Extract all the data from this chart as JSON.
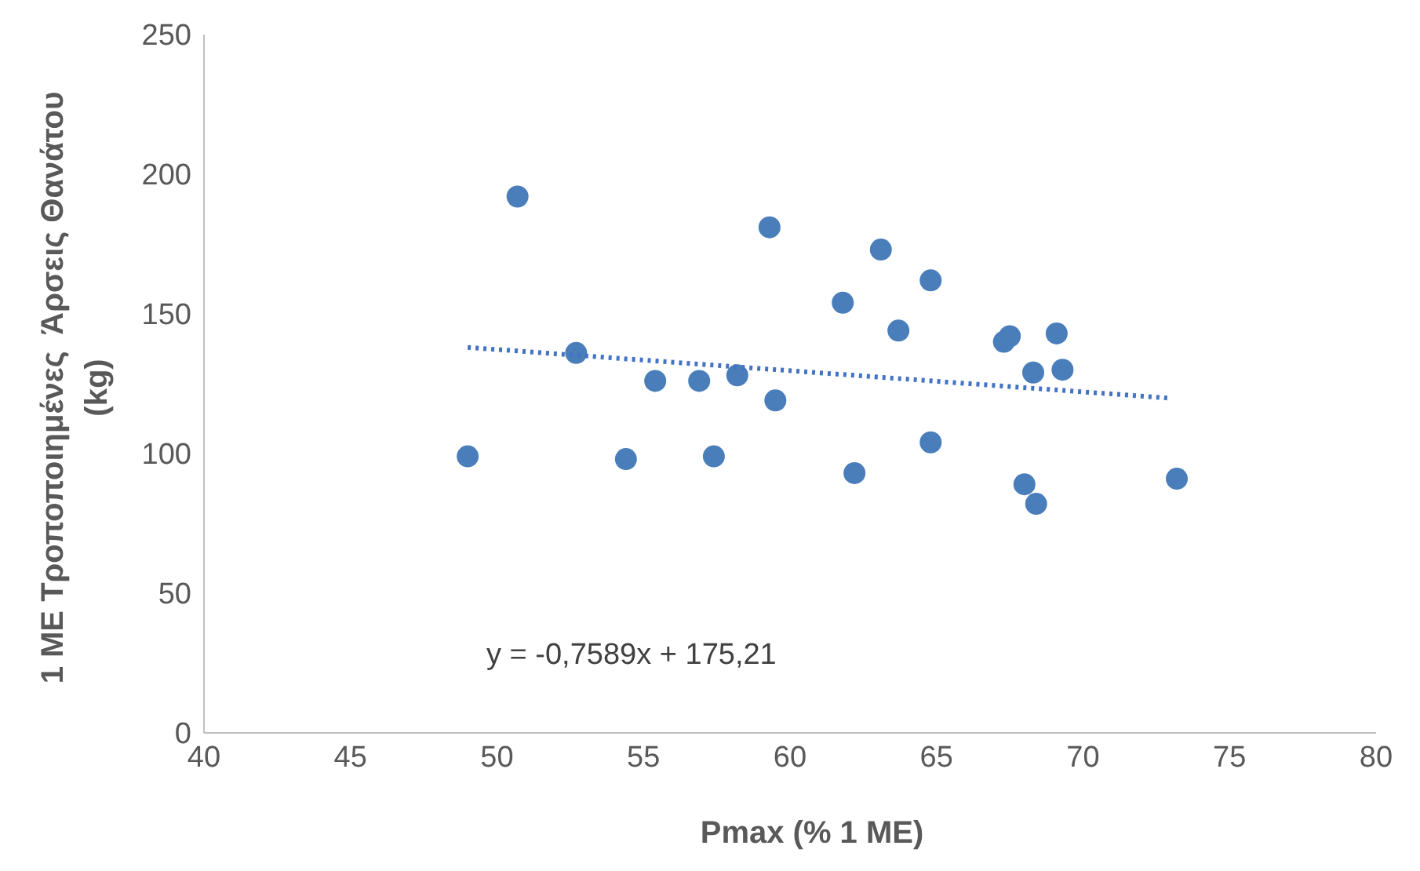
{
  "chart_data": {
    "type": "scatter",
    "xlabel": "Pmax (% 1 ME)",
    "ylabel": "1 ME Τροποποιημένες  Άρσεις Θανάτου\n(kg)",
    "xlim": [
      40,
      80
    ],
    "xticks": [
      40,
      45,
      50,
      55,
      60,
      65,
      70,
      75,
      80
    ],
    "ylim": [
      0,
      250
    ],
    "yticks": [
      0,
      50,
      100,
      150,
      200,
      250
    ],
    "grid": false,
    "annotations": [
      "y = -0,7589x + 175,21"
    ],
    "series": [
      {
        "color": "#4a7ebb",
        "marker": "circle",
        "x": [
          49.0,
          50.7,
          52.7,
          54.4,
          55.4,
          56.9,
          57.4,
          58.2,
          59.3,
          59.5,
          61.8,
          62.2,
          63.1,
          63.7,
          64.8,
          64.8,
          67.3,
          67.5,
          68.0,
          68.3,
          68.4,
          69.1,
          69.3,
          73.2
        ],
        "values": [
          99,
          192,
          136,
          98,
          126,
          126,
          99,
          128,
          181,
          119,
          154,
          93,
          173,
          144,
          162,
          104,
          140,
          142,
          89,
          129,
          82,
          143,
          130,
          91
        ]
      },
      {
        "type": "line",
        "color": "#4472c4",
        "marker": "none",
        "line_style": "dotted",
        "x": [
          49,
          73
        ],
        "values": [
          138.0,
          119.8
        ]
      }
    ]
  }
}
